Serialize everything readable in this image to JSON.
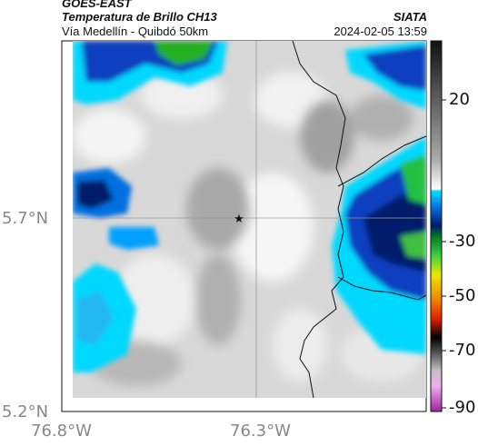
{
  "header": {
    "source": "GOES-EAST",
    "product": "Temperatura de Brillo CH13",
    "route": "Vía Medellín - Quibdó 50km",
    "org": "SIATA",
    "datetime": "2024-02-05 13:59"
  },
  "map": {
    "lat_ticks": [
      "5.7°N",
      "5.2°N"
    ],
    "lon_ticks": [
      "76.8°W",
      "76.3°W"
    ],
    "marker": "star-marker"
  },
  "colorbar": {
    "labels": [
      "20",
      "-30",
      "-50",
      "-70",
      "-90"
    ],
    "colors": {
      "high": "#222222",
      "gray": "#9a9a9a",
      "light": "#f2f2f2",
      "cyan": "#00d8ff",
      "blue": "#1040c0",
      "navy": "#001a6a",
      "green": "#20b020",
      "yellow": "#e8e800",
      "red": "#e82000",
      "black": "#000000",
      "magenta": "#c020c0"
    }
  }
}
